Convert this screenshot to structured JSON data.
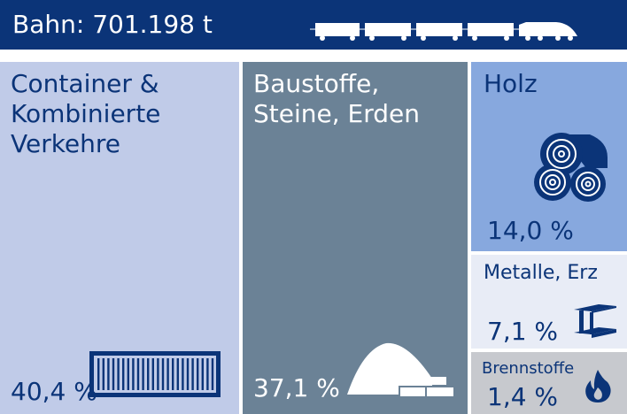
{
  "header": {
    "title": "Bahn: 701.198 t"
  },
  "colors": {
    "header": "#0b3478",
    "container": "#c0cbe8",
    "baustoffe": "#6b8296",
    "holz": "#87a8de",
    "metalle": "#e8ecf6",
    "brennstoffe": "#c7c9ce",
    "text_dark": "#0b3478",
    "text_light": "#ffffff"
  },
  "icons": {
    "train": "train-icon",
    "container": "shipping-container-icon",
    "baustoffe": "sand-pile-bricks-icon",
    "holz": "wood-logs-icon",
    "metalle": "steel-beam-icon",
    "brennstoffe": "flame-icon"
  },
  "chart_data": {
    "type": "treemap",
    "total_label": "Bahn: 701.198 t",
    "categories": [
      "Container & Kombinierte Verkehre",
      "Baustoffe, Steine, Erden",
      "Holz",
      "Metalle, Erz",
      "Brennstoffe"
    ],
    "labels": [
      "Container &\nKombinierte\nVerkehre",
      "Baustoffe,\nSteine, Erden",
      "Holz",
      "Metalle, Erz",
      "Brennstoffe"
    ],
    "values": [
      40.4,
      37.1,
      14.0,
      7.1,
      1.4
    ],
    "value_labels": [
      "40,4 %",
      "37,1 %",
      "14,0 %",
      "7,1 %",
      "1,4 %"
    ],
    "unit": "%"
  }
}
